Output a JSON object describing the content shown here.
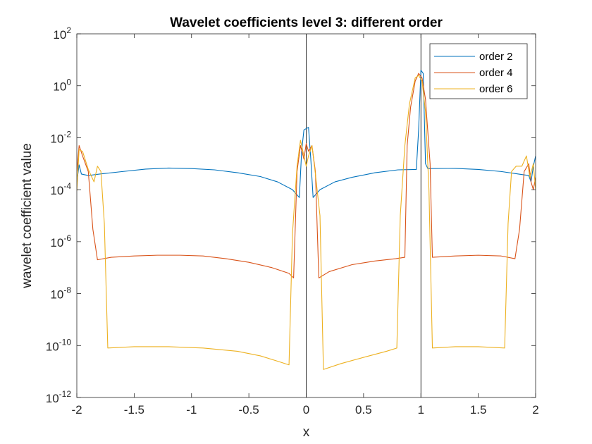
{
  "chart_data": {
    "type": "line",
    "title": "Wavelet coefficients level 3: different order",
    "xlabel": "x",
    "ylabel": "wavelet coefficient value",
    "xlim": [
      -2,
      2
    ],
    "ylim": [
      1e-12,
      100
    ],
    "yscale": "log",
    "grid": false,
    "legend_position": "top-right",
    "x_ticks": [
      -2,
      -1.5,
      -1,
      -0.5,
      0,
      0.5,
      1,
      1.5,
      2
    ],
    "x_tick_labels": [
      "-2",
      "-1.5",
      "-1",
      "-0.5",
      "0",
      "0.5",
      "1",
      "1.5",
      "2"
    ],
    "y_ticks": [
      1e-12,
      1e-10,
      1e-08,
      1e-06,
      0.0001,
      0.01,
      1,
      100
    ],
    "y_tick_labels": [
      {
        "base": "10",
        "exp": "-12"
      },
      {
        "base": "10",
        "exp": "-10"
      },
      {
        "base": "10",
        "exp": "-8"
      },
      {
        "base": "10",
        "exp": "-6"
      },
      {
        "base": "10",
        "exp": "-4"
      },
      {
        "base": "10",
        "exp": "-2"
      },
      {
        "base": "10",
        "exp": "0"
      },
      {
        "base": "10",
        "exp": "2"
      }
    ],
    "reference_lines_x": [
      0,
      1
    ],
    "series": [
      {
        "name": "order 2",
        "color": "#0072BD",
        "points": [
          [
            -2.0,
            0.0002
          ],
          [
            -1.98,
            0.0009
          ],
          [
            -1.96,
            0.0004
          ],
          [
            -1.9,
            0.00035
          ],
          [
            -1.8,
            0.0004
          ],
          [
            -1.6,
            0.0005
          ],
          [
            -1.4,
            0.00062
          ],
          [
            -1.2,
            0.00068
          ],
          [
            -1.0,
            0.00065
          ],
          [
            -0.8,
            0.00058
          ],
          [
            -0.6,
            0.00045
          ],
          [
            -0.4,
            0.00032
          ],
          [
            -0.25,
            0.0002
          ],
          [
            -0.12,
            0.0001
          ],
          [
            -0.06,
            5e-05
          ],
          [
            -0.04,
            0.003
          ],
          [
            -0.02,
            0.02
          ],
          [
            0.02,
            0.025
          ],
          [
            0.04,
            0.0015
          ],
          [
            0.06,
            5e-05
          ],
          [
            0.12,
            0.0001
          ],
          [
            0.25,
            0.0002
          ],
          [
            0.4,
            0.0003
          ],
          [
            0.6,
            0.00045
          ],
          [
            0.8,
            0.00058
          ],
          [
            0.96,
            0.0006
          ],
          [
            0.98,
            0.02
          ],
          [
            1.0,
            4
          ],
          [
            1.02,
            3
          ],
          [
            1.04,
            0.001
          ],
          [
            1.06,
            0.00065
          ],
          [
            1.3,
            0.00066
          ],
          [
            1.5,
            0.0006
          ],
          [
            1.7,
            0.0005
          ],
          [
            1.85,
            0.0004
          ],
          [
            1.94,
            0.00035
          ],
          [
            1.96,
            0.0002
          ],
          [
            1.98,
            0.0008
          ],
          [
            2.0,
            0.002
          ]
        ]
      },
      {
        "name": "order 4",
        "color": "#D95319",
        "points": [
          [
            -2.0,
            0.0005
          ],
          [
            -1.98,
            0.005
          ],
          [
            -1.95,
            0.002
          ],
          [
            -1.9,
            0.0005
          ],
          [
            -1.86,
            3e-06
          ],
          [
            -1.82,
            2e-07
          ],
          [
            -1.7,
            2.5e-07
          ],
          [
            -1.5,
            2.8e-07
          ],
          [
            -1.3,
            3e-07
          ],
          [
            -1.1,
            3e-07
          ],
          [
            -0.9,
            2.8e-07
          ],
          [
            -0.7,
            2.2e-07
          ],
          [
            -0.5,
            1.6e-07
          ],
          [
            -0.3,
            1e-07
          ],
          [
            -0.15,
            6e-08
          ],
          [
            -0.11,
            4e-08
          ],
          [
            -0.08,
            0.0005
          ],
          [
            -0.05,
            0.005
          ],
          [
            -0.02,
            0.0015
          ],
          [
            0.0,
            0.006
          ],
          [
            0.02,
            0.003
          ],
          [
            0.05,
            0.005
          ],
          [
            0.08,
            0.0005
          ],
          [
            0.11,
            4e-08
          ],
          [
            0.2,
            7e-08
          ],
          [
            0.4,
            1.3e-07
          ],
          [
            0.6,
            1.8e-07
          ],
          [
            0.78,
            2.2e-07
          ],
          [
            0.86,
            2.5e-07
          ],
          [
            0.88,
            0.005
          ],
          [
            0.91,
            0.15
          ],
          [
            0.95,
            1.5
          ],
          [
            0.98,
            3
          ],
          [
            1.01,
            2
          ],
          [
            1.04,
            0.3
          ],
          [
            1.08,
            0.001
          ],
          [
            1.1,
            2.5e-07
          ],
          [
            1.3,
            2.8e-07
          ],
          [
            1.5,
            3e-07
          ],
          [
            1.7,
            2.8e-07
          ],
          [
            1.82,
            2.2e-07
          ],
          [
            1.86,
            3e-06
          ],
          [
            1.9,
            0.0005
          ],
          [
            1.94,
            0.001
          ],
          [
            1.96,
            0.0002
          ],
          [
            1.98,
            0.0001
          ],
          [
            2.0,
            0.0003
          ]
        ]
      },
      {
        "name": "order 6",
        "color": "#EDB120",
        "points": [
          [
            -2.0,
            9e-05
          ],
          [
            -1.98,
            0.0035
          ],
          [
            -1.95,
            0.003
          ],
          [
            -1.9,
            0.0006
          ],
          [
            -1.85,
            0.0002
          ],
          [
            -1.82,
            0.0008
          ],
          [
            -1.79,
            0.0005
          ],
          [
            -1.76,
            5e-06
          ],
          [
            -1.73,
            8e-11
          ],
          [
            -1.5,
            9e-11
          ],
          [
            -1.2,
            9e-11
          ],
          [
            -0.9,
            8e-11
          ],
          [
            -0.6,
            6e-11
          ],
          [
            -0.4,
            4e-11
          ],
          [
            -0.25,
            2.5e-11
          ],
          [
            -0.15,
            1.8e-11
          ],
          [
            -0.12,
            2e-06
          ],
          [
            -0.08,
            0.0008
          ],
          [
            -0.05,
            0.008
          ],
          [
            -0.02,
            0.002
          ],
          [
            0.0,
            0.0008
          ],
          [
            0.02,
            0.002
          ],
          [
            0.05,
            0.005
          ],
          [
            0.08,
            0.0004
          ],
          [
            0.12,
            1e-05
          ],
          [
            0.15,
            1.2e-11
          ],
          [
            0.3,
            2e-11
          ],
          [
            0.5,
            3.5e-11
          ],
          [
            0.7,
            6e-11
          ],
          [
            0.79,
            8e-11
          ],
          [
            0.82,
            1e-05
          ],
          [
            0.86,
            0.005
          ],
          [
            0.9,
            0.2
          ],
          [
            0.95,
            2
          ],
          [
            0.98,
            2.5
          ],
          [
            1.01,
            1.5
          ],
          [
            1.04,
            0.1
          ],
          [
            1.07,
            0.0001
          ],
          [
            1.1,
            8e-11
          ],
          [
            1.3,
            9e-11
          ],
          [
            1.5,
            9e-11
          ],
          [
            1.73,
            8e-11
          ],
          [
            1.76,
            5e-06
          ],
          [
            1.79,
            0.0005
          ],
          [
            1.83,
            0.0008
          ],
          [
            1.88,
            0.0008
          ],
          [
            1.92,
            0.002
          ],
          [
            1.95,
            0.0003
          ],
          [
            1.98,
            0.001
          ],
          [
            2.0,
            0.0001
          ]
        ]
      }
    ]
  }
}
